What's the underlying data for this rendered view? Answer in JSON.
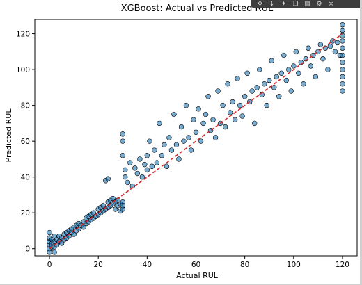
{
  "chart_data": {
    "type": "scatter",
    "title": "XGBoost: Actual vs Predicted RUL",
    "xlabel": "Actual RUL",
    "ylabel": "Predicted RUL",
    "xlim": [
      -6,
      126
    ],
    "ylim": [
      -4,
      128
    ],
    "xticks": [
      0,
      20,
      40,
      60,
      80,
      100,
      120
    ],
    "yticks": [
      0,
      20,
      40,
      60,
      80,
      100,
      120
    ],
    "grid": false,
    "point_color": "#1f77b4",
    "point_edge_color": "#000000",
    "reference_line": {
      "x": [
        0,
        120
      ],
      "y": [
        0,
        120
      ],
      "color": "#d62728",
      "style": "dashed"
    },
    "series": [
      {
        "points": [
          [
            0,
            0
          ],
          [
            0,
            2
          ],
          [
            0,
            4
          ],
          [
            0,
            6
          ],
          [
            0,
            9
          ],
          [
            0,
            -2
          ],
          [
            1,
            3
          ],
          [
            1,
            1
          ],
          [
            1,
            5
          ],
          [
            2,
            1
          ],
          [
            2,
            4
          ],
          [
            2,
            7
          ],
          [
            2,
            -2
          ],
          [
            3,
            2
          ],
          [
            3,
            5
          ],
          [
            4,
            4
          ],
          [
            4,
            7
          ],
          [
            5,
            3
          ],
          [
            5,
            6
          ],
          [
            6,
            5
          ],
          [
            6,
            8
          ],
          [
            7,
            6
          ],
          [
            7,
            9
          ],
          [
            8,
            7
          ],
          [
            8,
            10
          ],
          [
            9,
            9
          ],
          [
            9,
            11
          ],
          [
            10,
            8
          ],
          [
            10,
            12
          ],
          [
            11,
            10
          ],
          [
            11,
            13
          ],
          [
            12,
            11
          ],
          [
            12,
            14
          ],
          [
            13,
            13
          ],
          [
            14,
            12
          ],
          [
            14,
            15
          ],
          [
            15,
            14
          ],
          [
            15,
            17
          ],
          [
            16,
            15
          ],
          [
            16,
            18
          ],
          [
            17,
            16
          ],
          [
            17,
            19
          ],
          [
            18,
            17
          ],
          [
            18,
            20
          ],
          [
            19,
            18
          ],
          [
            20,
            19
          ],
          [
            20,
            22
          ],
          [
            21,
            20
          ],
          [
            21,
            23
          ],
          [
            22,
            21
          ],
          [
            22,
            24
          ],
          [
            23,
            22
          ],
          [
            24,
            23
          ],
          [
            24,
            26
          ],
          [
            25,
            24
          ],
          [
            25,
            27
          ],
          [
            26,
            25
          ],
          [
            26,
            28
          ],
          [
            27,
            22
          ],
          [
            27,
            26
          ],
          [
            28,
            24
          ],
          [
            28,
            27
          ],
          [
            29,
            21
          ],
          [
            29,
            25
          ],
          [
            30,
            22
          ],
          [
            30,
            26
          ],
          [
            30,
            24
          ],
          [
            23,
            38
          ],
          [
            24,
            39
          ],
          [
            30,
            64
          ],
          [
            30,
            60
          ],
          [
            30,
            52
          ],
          [
            31,
            44
          ],
          [
            31,
            40
          ],
          [
            32,
            37
          ],
          [
            33,
            48
          ],
          [
            34,
            35
          ],
          [
            35,
            45
          ],
          [
            36,
            42
          ],
          [
            37,
            50
          ],
          [
            38,
            40
          ],
          [
            39,
            47
          ],
          [
            40,
            52
          ],
          [
            40,
            44
          ],
          [
            41,
            60
          ],
          [
            42,
            46
          ],
          [
            43,
            55
          ],
          [
            44,
            48
          ],
          [
            45,
            70
          ],
          [
            46,
            52
          ],
          [
            47,
            58
          ],
          [
            48,
            46
          ],
          [
            49,
            62
          ],
          [
            50,
            55
          ],
          [
            51,
            75
          ],
          [
            52,
            58
          ],
          [
            53,
            50
          ],
          [
            54,
            68
          ],
          [
            55,
            60
          ],
          [
            56,
            80
          ],
          [
            57,
            62
          ],
          [
            58,
            55
          ],
          [
            59,
            72
          ],
          [
            60,
            65
          ],
          [
            61,
            78
          ],
          [
            62,
            60
          ],
          [
            63,
            70
          ],
          [
            64,
            75
          ],
          [
            65,
            85
          ],
          [
            66,
            66
          ],
          [
            67,
            72
          ],
          [
            68,
            62
          ],
          [
            69,
            88
          ],
          [
            70,
            70
          ],
          [
            71,
            80
          ],
          [
            72,
            68
          ],
          [
            73,
            92
          ],
          [
            74,
            76
          ],
          [
            75,
            82
          ],
          [
            76,
            72
          ],
          [
            77,
            95
          ],
          [
            78,
            80
          ],
          [
            79,
            74
          ],
          [
            80,
            85
          ],
          [
            81,
            98
          ],
          [
            82,
            82
          ],
          [
            83,
            88
          ],
          [
            84,
            70
          ],
          [
            85,
            90
          ],
          [
            86,
            100
          ],
          [
            87,
            86
          ],
          [
            88,
            92
          ],
          [
            89,
            80
          ],
          [
            90,
            94
          ],
          [
            91,
            105
          ],
          [
            92,
            90
          ],
          [
            93,
            96
          ],
          [
            94,
            85
          ],
          [
            95,
            98
          ],
          [
            96,
            108
          ],
          [
            97,
            94
          ],
          [
            98,
            100
          ],
          [
            99,
            88
          ],
          [
            100,
            102
          ],
          [
            101,
            110
          ],
          [
            102,
            98
          ],
          [
            103,
            104
          ],
          [
            104,
            92
          ],
          [
            105,
            106
          ],
          [
            106,
            112
          ],
          [
            107,
            102
          ],
          [
            108,
            108
          ],
          [
            109,
            96
          ],
          [
            110,
            110
          ],
          [
            111,
            114
          ],
          [
            112,
            106
          ],
          [
            113,
            112
          ],
          [
            114,
            100
          ],
          [
            115,
            113
          ],
          [
            116,
            116
          ],
          [
            117,
            110
          ],
          [
            118,
            115
          ],
          [
            119,
            108
          ],
          [
            120,
            125
          ],
          [
            120,
            122
          ],
          [
            120,
            119
          ],
          [
            120,
            116
          ],
          [
            120,
            112
          ],
          [
            120,
            108
          ],
          [
            120,
            104
          ],
          [
            120,
            100
          ],
          [
            120,
            96
          ],
          [
            120,
            92
          ],
          [
            120,
            88
          ]
        ]
      }
    ]
  }
}
